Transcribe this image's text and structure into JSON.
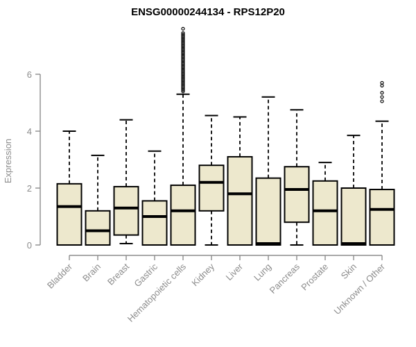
{
  "chart_data": {
    "type": "boxplot",
    "title": "ENSG00000244134 - RPS12P20",
    "ylabel": "Expression",
    "xlabel": "",
    "ylim": [
      0,
      6
    ],
    "yticks": [
      0,
      2,
      4,
      6
    ],
    "grid": false,
    "legend": null,
    "categories": [
      "Bladder",
      "Brain",
      "Breast",
      "Gastric",
      "Hematopoietic cells",
      "Kidney",
      "Liver",
      "Lung",
      "Pancreas",
      "Prostate",
      "Skin",
      "Unknown / Other"
    ],
    "series": [
      {
        "name": "Bladder",
        "low": 0,
        "q1": 0,
        "median": 1.35,
        "q3": 2.15,
        "high": 4.0,
        "outliers": []
      },
      {
        "name": "Brain",
        "low": 0,
        "q1": 0,
        "median": 0.5,
        "q3": 1.2,
        "high": 3.15,
        "outliers": []
      },
      {
        "name": "Breast",
        "low": 0.05,
        "q1": 0.35,
        "median": 1.3,
        "q3": 2.05,
        "high": 4.4,
        "outliers": []
      },
      {
        "name": "Gastric",
        "low": 0,
        "q1": 0,
        "median": 1.0,
        "q3": 1.55,
        "high": 3.3,
        "outliers": []
      },
      {
        "name": "Hematopoietic cells",
        "low": 0,
        "q1": 0,
        "median": 1.2,
        "q3": 2.1,
        "high": 5.3,
        "outliers": [
          5.4,
          5.45,
          5.5,
          5.55,
          5.6,
          5.65,
          5.7,
          5.75,
          5.8,
          5.85,
          5.9,
          5.95,
          6.0,
          6.05,
          6.1,
          6.15,
          6.2,
          6.25,
          6.3,
          6.35,
          6.4,
          6.45,
          6.5,
          6.55,
          6.6,
          6.65,
          6.7,
          6.75,
          6.8,
          6.85,
          6.9,
          6.95,
          7.0,
          7.05,
          7.1,
          7.15,
          7.2,
          7.25,
          7.3,
          7.35,
          7.4,
          7.45,
          7.6
        ]
      },
      {
        "name": "Kidney",
        "low": 0,
        "q1": 1.2,
        "median": 2.2,
        "q3": 2.8,
        "high": 4.55,
        "outliers": []
      },
      {
        "name": "Liver",
        "low": 0,
        "q1": 0,
        "median": 1.8,
        "q3": 3.1,
        "high": 4.5,
        "outliers": []
      },
      {
        "name": "Lung",
        "low": 0,
        "q1": 0,
        "median": 0.05,
        "q3": 2.35,
        "high": 5.2,
        "outliers": []
      },
      {
        "name": "Pancreas",
        "low": 0,
        "q1": 0.8,
        "median": 1.95,
        "q3": 2.75,
        "high": 4.75,
        "outliers": []
      },
      {
        "name": "Prostate",
        "low": 0,
        "q1": 0,
        "median": 1.2,
        "q3": 2.25,
        "high": 2.9,
        "outliers": []
      },
      {
        "name": "Skin",
        "low": 0,
        "q1": 0,
        "median": 0.05,
        "q3": 2.0,
        "high": 3.85,
        "outliers": []
      },
      {
        "name": "Unknown / Other",
        "low": 0,
        "q1": 0,
        "median": 1.25,
        "q3": 1.95,
        "high": 4.35,
        "outliers": [
          5.05,
          5.2,
          5.35,
          5.6,
          5.7
        ]
      }
    ]
  },
  "colors": {
    "box_fill": "#EDE8CD",
    "box_stroke": "#000000",
    "median": "#000000",
    "whisker": "#000000",
    "outlier_stroke": "#000000",
    "axis": "#8C8C8C",
    "tick_text": "#8C8C8C",
    "title_text": "#000000",
    "background": "#FFFFFF"
  }
}
